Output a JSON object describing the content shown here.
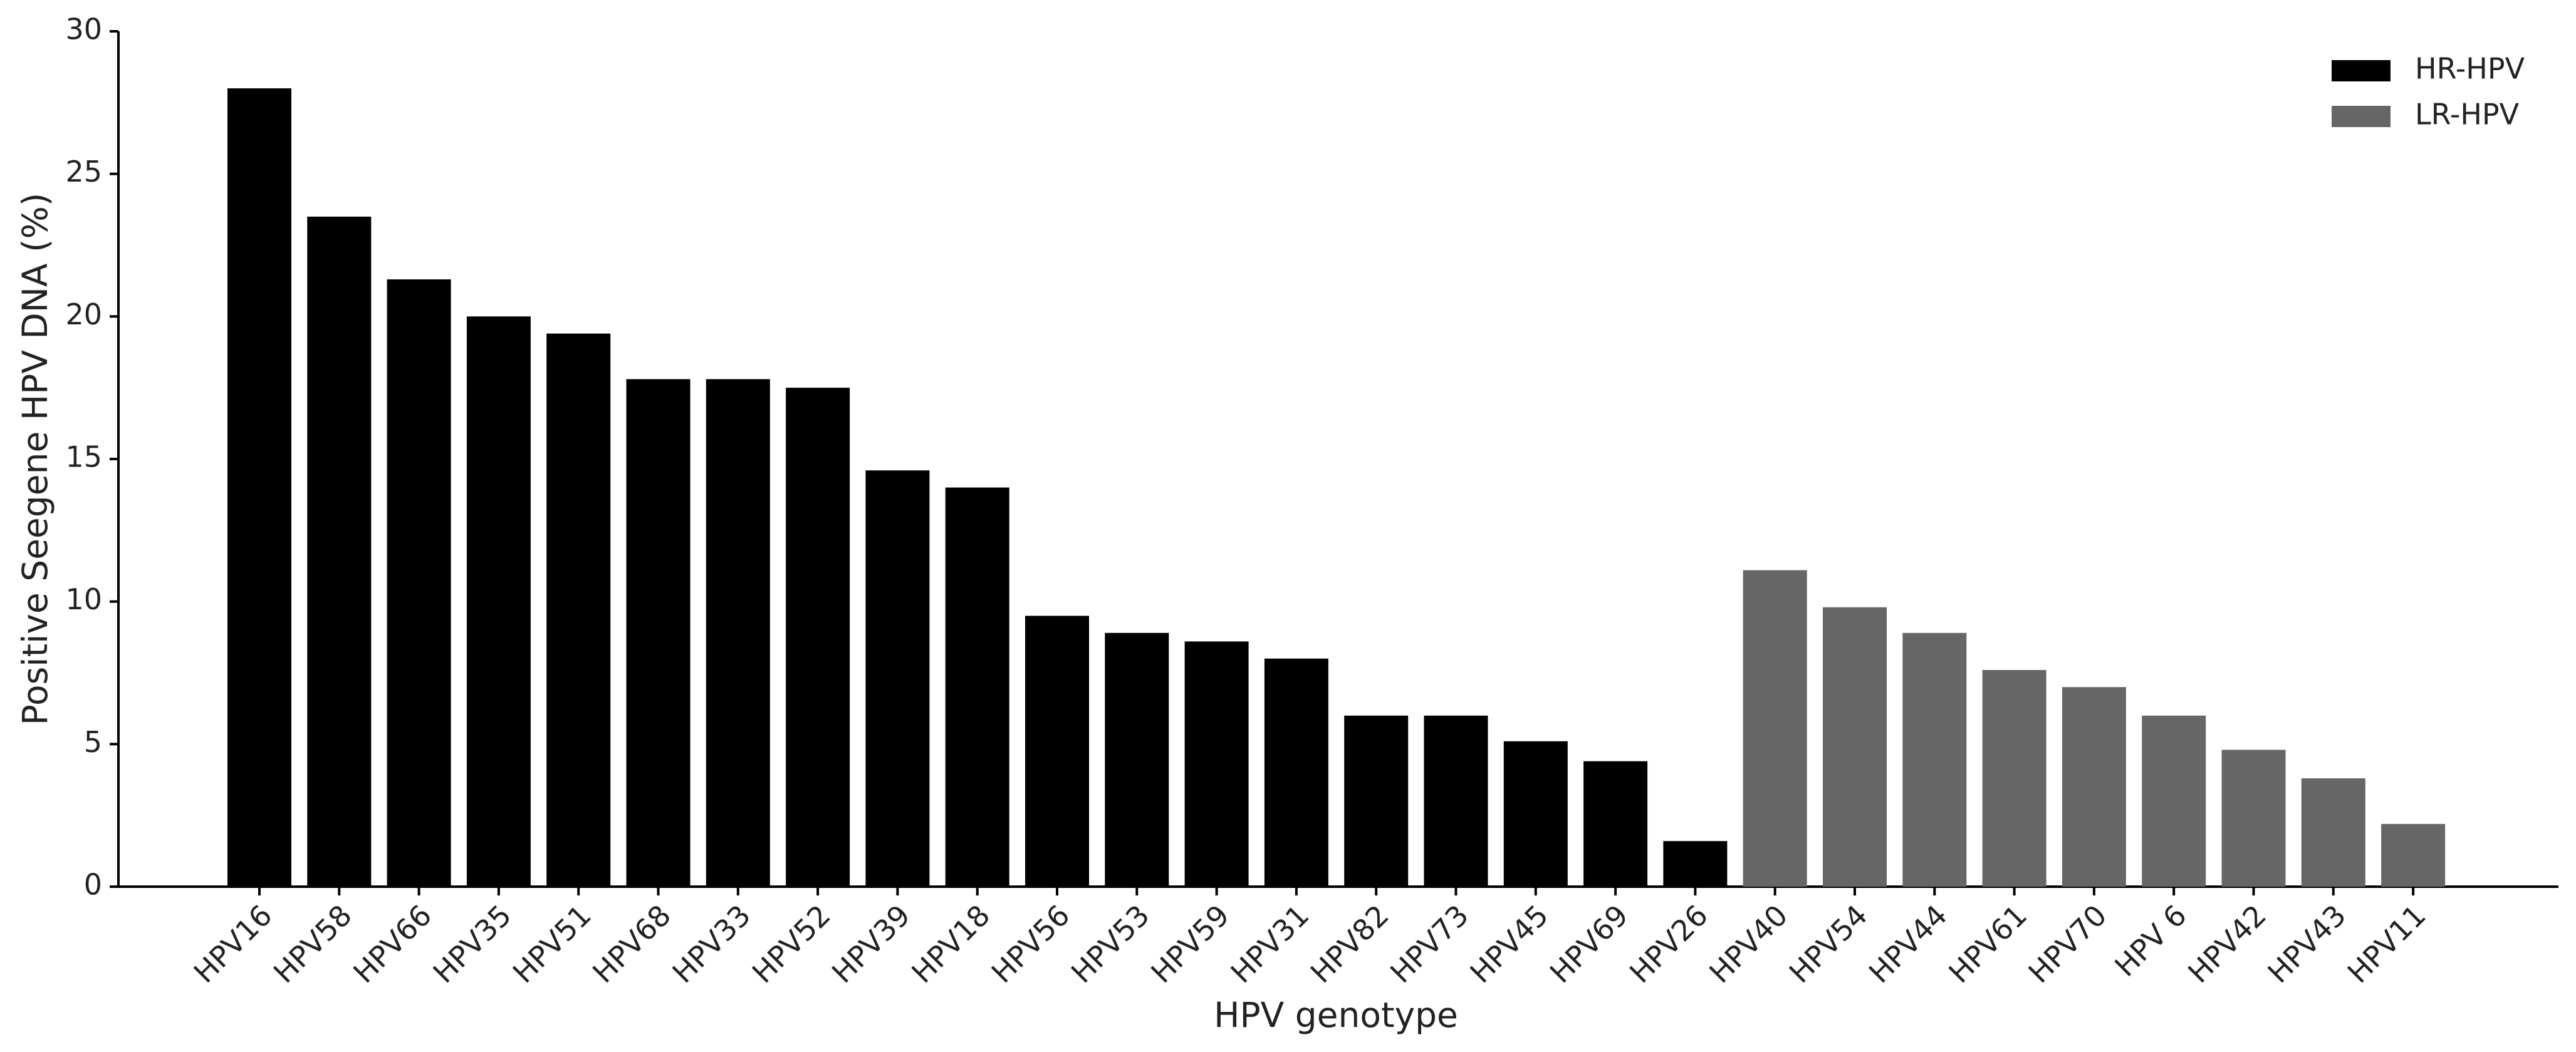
{
  "chart_data": {
    "type": "bar",
    "x_label": "HPV genotype",
    "y_label": "Positive Seegene HPV DNA (%)",
    "categories": [
      "HPV16",
      "HPV58",
      "HPV66",
      "HPV35",
      "HPV51",
      "HPV68",
      "HPV33",
      "HPV52",
      "HPV39",
      "HPV18",
      "HPV56",
      "HPV53",
      "HPV59",
      "HPV31",
      "HPV82",
      "HPV73",
      "HPV45",
      "HPV69",
      "HPV26",
      "HPV40",
      "HPV54",
      "HPV44",
      "HPV61",
      "HPV70",
      "HPV 6",
      "HPV42",
      "HPV43",
      "HPV11"
    ],
    "series": [
      {
        "name": "HR-HPV",
        "color": "#000000",
        "values": [
          28.0,
          23.5,
          21.3,
          20.0,
          19.4,
          17.8,
          17.8,
          17.5,
          14.6,
          14.0,
          9.5,
          8.9,
          8.6,
          8.0,
          6.0,
          6.0,
          5.1,
          4.4,
          1.6,
          null,
          null,
          null,
          null,
          null,
          null,
          null,
          null,
          null
        ]
      },
      {
        "name": "LR-HPV",
        "color": "#666666",
        "values": [
          null,
          null,
          null,
          null,
          null,
          null,
          null,
          null,
          null,
          null,
          null,
          null,
          null,
          null,
          null,
          null,
          null,
          null,
          null,
          11.1,
          9.8,
          8.9,
          7.6,
          7.0,
          6.0,
          4.8,
          3.8,
          2.2
        ]
      }
    ],
    "ylim": [
      0,
      30
    ],
    "yticks": [
      0,
      5,
      10,
      15,
      20,
      25,
      30
    ],
    "legend": "upper right"
  }
}
